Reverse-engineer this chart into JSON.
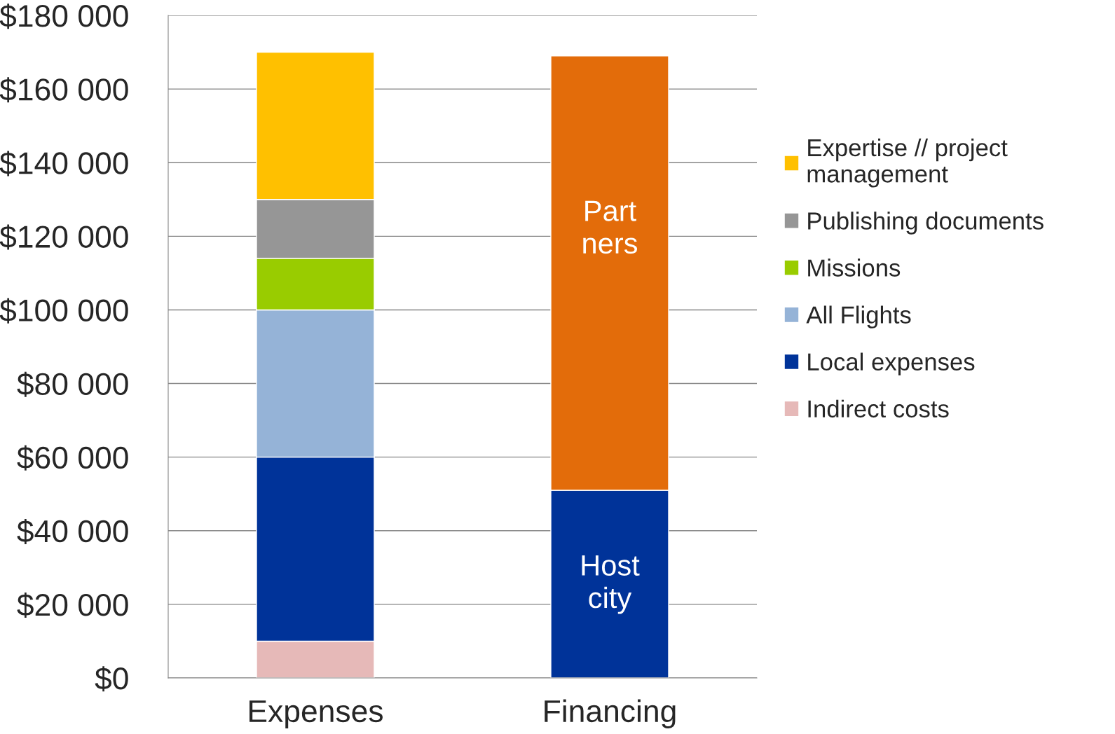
{
  "chart_data": {
    "type": "bar",
    "stacked": true,
    "categories": [
      "Expenses",
      "Financing"
    ],
    "series": [
      {
        "name": "Indirect costs",
        "color": "#e6b9b8",
        "values": [
          10000,
          null
        ]
      },
      {
        "name": "Local expenses",
        "color": "#003399",
        "values": [
          50000,
          null
        ]
      },
      {
        "name": "All Flights",
        "color": "#95b3d7",
        "values": [
          40000,
          null
        ]
      },
      {
        "name": "Missions",
        "color": "#99cc00",
        "values": [
          14000,
          null
        ]
      },
      {
        "name": "Publishing documents",
        "color": "#969696",
        "values": [
          16000,
          null
        ]
      },
      {
        "name": "Expertise // project management",
        "color": "#ffc000",
        "values": [
          40000,
          null
        ]
      },
      {
        "name": "Host\ncity",
        "color": "#003399",
        "values": [
          null,
          51000
        ]
      },
      {
        "name": "Part\nners",
        "color": "#e36c0a",
        "values": [
          null,
          118000
        ]
      }
    ],
    "ylim": [
      0,
      180000
    ],
    "yticks": [
      {
        "value": 0,
        "label": "$0"
      },
      {
        "value": 20000,
        "label": "$20 000"
      },
      {
        "value": 40000,
        "label": "$40 000"
      },
      {
        "value": 60000,
        "label": "$60 000"
      },
      {
        "value": 80000,
        "label": "$80 000"
      },
      {
        "value": 100000,
        "label": "$100 000"
      },
      {
        "value": 120000,
        "label": "$120 000"
      },
      {
        "value": 140000,
        "label": "$140 000"
      },
      {
        "value": 160000,
        "label": "$160 000"
      },
      {
        "value": 180000,
        "label": "$180 000"
      }
    ],
    "grid": "y",
    "legend": "right"
  }
}
